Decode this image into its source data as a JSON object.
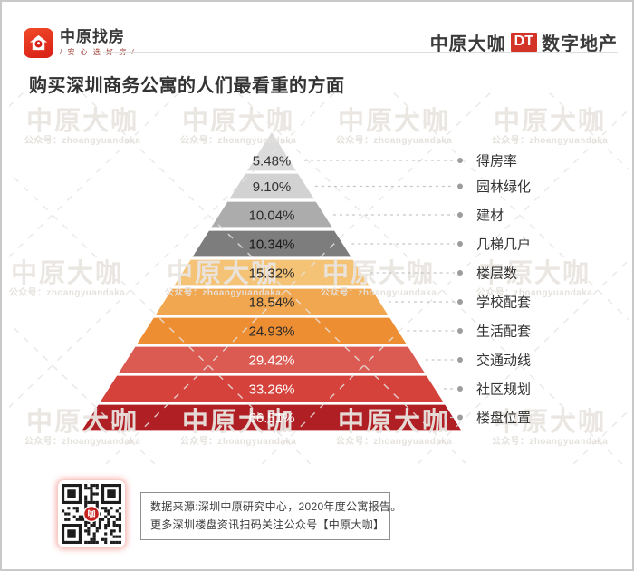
{
  "header": {
    "logo": {
      "icon": "house-pin-icon",
      "name": "中原找房",
      "tagline": "/ 安 心 选 好 房 /"
    },
    "brand": {
      "part1": "中原大咖",
      "badge": "DT",
      "part2": "数字地产"
    }
  },
  "title": "购买深圳商务公寓的人们最看重的方面",
  "watermark": {
    "text": "中原大咖",
    "subtext": "公众号：zhoangyuandaka"
  },
  "chart_data": {
    "type": "bar",
    "variant": "pyramid-funnel",
    "title": "购买深圳商务公寓的人们最看重的方面",
    "categories": [
      "得房率",
      "园林绿化",
      "建材",
      "几梯几户",
      "楼层数",
      "学校配套",
      "生活配套",
      "交通动线",
      "社区规划",
      "楼盘位置"
    ],
    "values": [
      5.48,
      9.1,
      10.04,
      10.34,
      15.32,
      18.54,
      24.93,
      29.42,
      33.26,
      66.51
    ],
    "value_labels": [
      "5.48%",
      "9.10%",
      "10.04%",
      "10.34%",
      "15.32%",
      "18.54%",
      "24.93%",
      "29.42%",
      "33.26%",
      "66.51%"
    ],
    "colors": [
      "#dbdbdb",
      "#d2d2d2",
      "#acacac",
      "#7d7d7d",
      "#f4c375",
      "#f1a750",
      "#ee8e33",
      "#db5a52",
      "#d5423c",
      "#b01f24"
    ],
    "value_text_colors": [
      "#333333",
      "#333333",
      "#2b2b2b",
      "#1a1a1a",
      "#2b2b2b",
      "#2b2b2b",
      "#2b2b2b",
      "#ffffff",
      "#ffffff",
      "#ffffff"
    ],
    "legend_position": "right",
    "grid": false
  },
  "footer": {
    "source_line1": "数据来源:深圳中原研究中心，2020年度公寓报告。",
    "source_line2": "更多深圳楼盘资讯扫码关注公众号【中原大咖】",
    "qr": {
      "name": "qr-code",
      "center_badge": "咖"
    }
  }
}
